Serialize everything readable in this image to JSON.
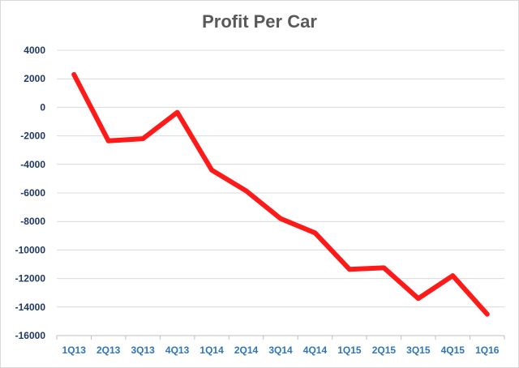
{
  "chart_data": {
    "type": "line",
    "title": "Profit Per Car",
    "xlabel": "",
    "ylabel": "",
    "categories": [
      "1Q13",
      "2Q13",
      "3Q13",
      "4Q13",
      "1Q14",
      "2Q14",
      "3Q14",
      "4Q14",
      "1Q15",
      "2Q15",
      "3Q15",
      "4Q15",
      "1Q16"
    ],
    "series": [
      {
        "values": [
          2300,
          -2350,
          -2200,
          -350,
          -4400,
          -5850,
          -7800,
          -8800,
          -11350,
          -11250,
          -13400,
          -11800,
          -14500
        ],
        "color": "#ff1a1a"
      }
    ],
    "ylim": [
      -16000,
      4000
    ],
    "yticks": [
      4000,
      2000,
      0,
      -2000,
      -4000,
      -6000,
      -8000,
      -10000,
      -12000,
      -14000,
      -16000
    ],
    "grid": true,
    "legend": "none",
    "colors": {
      "y_tick_text": "#1f3864",
      "x_tick_text": "#2e75b6",
      "grid": "#d9d9d9",
      "axis": "#bfbfbf"
    }
  }
}
